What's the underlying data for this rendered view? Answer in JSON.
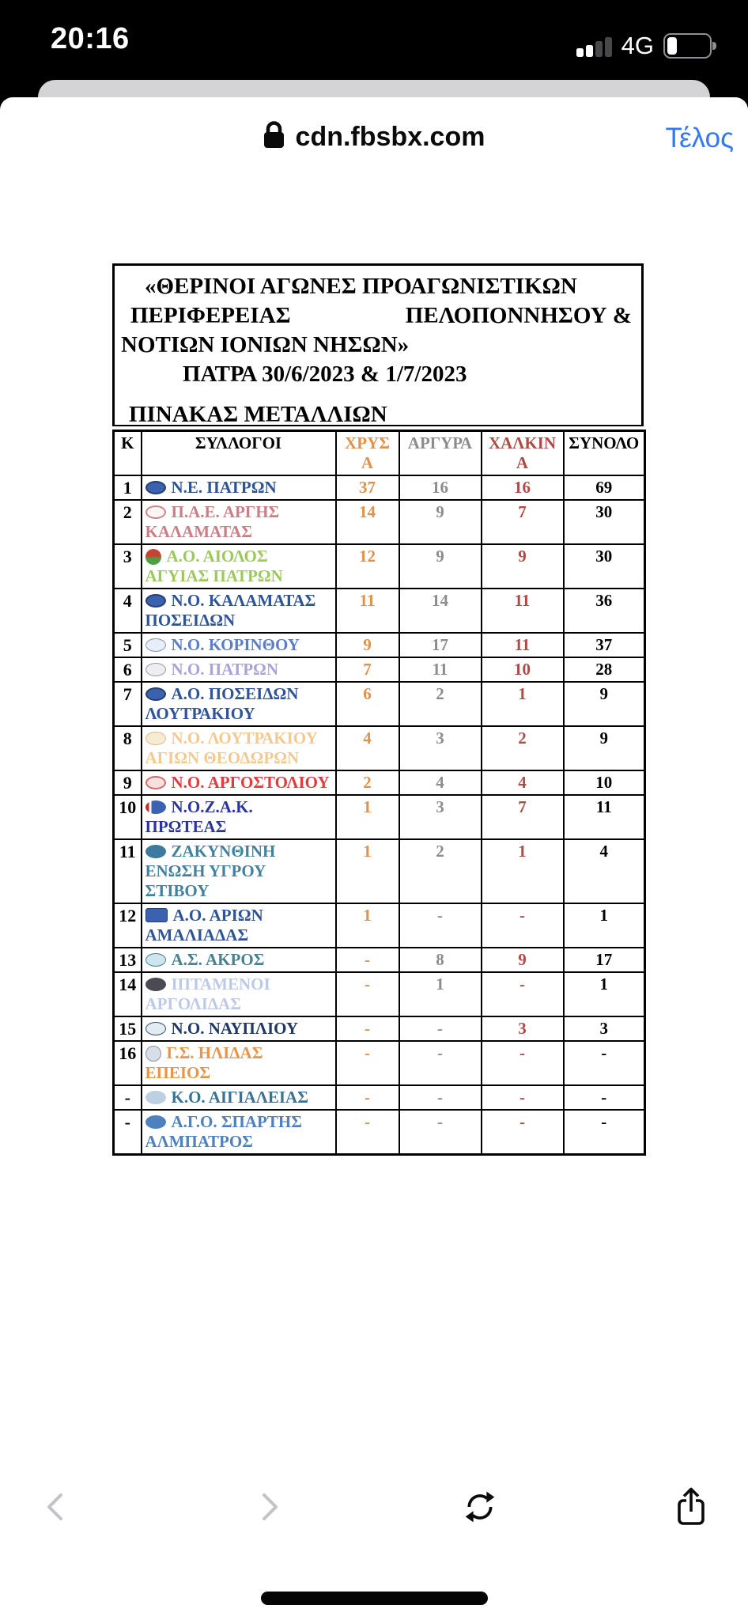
{
  "status_bar": {
    "time": "20:16",
    "network": "4G",
    "signal_bars_total": 4,
    "signal_bars_filled": 2,
    "battery_percent": 25
  },
  "browser": {
    "domain": "cdn.fbsbx.com",
    "done_label": "Τέλος"
  },
  "colors": {
    "gold": "#E0914B",
    "silver": "#8C8C8C",
    "bronze": "#AE4B44",
    "done_blue": "#3478F6"
  },
  "document": {
    "title_line1": "«ΘΕΡΙΝΟΙ ΑΓΩΝΕΣ ΠΡΟΑΓΩΝΙΣΤΙΚΩΝ",
    "title_line2_left": "ΠΕΡΙΦΕΡΕΙΑΣ",
    "title_line2_right": "ΠΕΛΟΠΟΝΝΗΣΟΥ &",
    "title_line3": "ΝΟΤΙΩΝ ΙΟΝΙΩΝ ΝΗΣΩΝ»",
    "title_line4": "ΠΑΤΡΑ 30/6/2023 & 1/7/2023",
    "table_title": "ΠΙΝΑΚΑΣ ΜΕΤΑΛΛΙΩΝ",
    "table": {
      "columns": [
        {
          "key": "k",
          "label": "Κ"
        },
        {
          "key": "clubs",
          "label": "ΣΥΛΛΟΓΟΙ"
        },
        {
          "key": "gold",
          "label": "ΧΡΥΣΑ"
        },
        {
          "key": "silver",
          "label": "ΑΡΓΥΡΑ"
        },
        {
          "key": "bronze",
          "label": "ΧΑΛΚΙΝΑ"
        },
        {
          "key": "total",
          "label": "ΣΥΝΟΛΟ"
        }
      ],
      "rows": [
        {
          "k": "1",
          "name": "Ν.Ε. ΠΑΤΡΩΝ",
          "name_color": "#2E5496",
          "gold": "37",
          "silver": "16",
          "bronze": "16",
          "total": "69",
          "logo": {
            "bg": "#3A62B0",
            "border": "2px solid #28406E",
            "shape": "oval"
          }
        },
        {
          "k": "2",
          "name": "Π.Α.Ε. ΑΡΓΗΣ ΚΑΛΑΜΑΤΑΣ",
          "name_color": "#CC7E86",
          "gold": "14",
          "silver": "9",
          "bronze": "7",
          "total": "30",
          "logo": {
            "bg": "#FDF4F4",
            "border": "2px solid #C9888E",
            "shape": "oval"
          }
        },
        {
          "k": "3",
          "name": "Α.Ο. ΑΙΟΛΟΣ ΑΓΥΙΑΣ ΠΑΤΡΩΝ",
          "name_color": "#9DC95C",
          "gold": "12",
          "silver": "9",
          "bronze": "9",
          "total": "30",
          "logo": {
            "bg": "linear-gradient(180deg,#C94335 45%,#4E9E44 60%)",
            "border": "none",
            "shape": "circle"
          }
        },
        {
          "k": "4",
          "name": "Ν.Ο. ΚΑΛΑΜΑΤΑΣ ΠΟΣΕΙΔΩΝ",
          "name_color": "#2E5496",
          "gold": "11",
          "silver": "14",
          "bronze": "11",
          "total": "36",
          "logo": {
            "bg": "#3A62B0",
            "border": "2px solid #28406E",
            "shape": "oval"
          }
        },
        {
          "k": "5",
          "name": "Ν.Ο. ΚΟΡΙΝΘΟΥ",
          "name_color": "#5D7EC4",
          "gold": "9",
          "silver": "17",
          "bronze": "11",
          "total": "37",
          "logo": {
            "bg": "#E8EEF8",
            "border": "1px solid #8899BB",
            "shape": "oval"
          }
        },
        {
          "k": "6",
          "name": "Ν.Ο. ΠΑΤΡΩΝ",
          "name_color": "#ABA3D8",
          "gold": "7",
          "silver": "11",
          "bronze": "10",
          "total": "28",
          "logo": {
            "bg": "#EDEDF2",
            "border": "1px solid #9999AA",
            "shape": "oval"
          }
        },
        {
          "k": "7",
          "name": "Α.Ο. ΠΟΣΕΙΔΩΝ ΛΟΥΤΡΑΚΙΟΥ",
          "name_color": "#2E5496",
          "gold": "6",
          "silver": "2",
          "bronze": "1",
          "total": "9",
          "logo": {
            "bg": "#3A62B0",
            "border": "2px solid #28406E",
            "shape": "oval"
          }
        },
        {
          "k": "8",
          "name": "Ν.Ο. ΛΟΥΤΡΑΚΙΟΥ ΑΓΙΩΝ ΘΕΟΔΩΡΩΝ",
          "name_color": "#F3C98F",
          "gold": "4",
          "silver": "3",
          "bronze": "2",
          "total": "9",
          "logo": {
            "bg": "#F7EBD2",
            "border": "1px solid #D9BE8C",
            "shape": "oval"
          }
        },
        {
          "k": "9",
          "name": "Ν.Ο. ΑΡΓΟΣΤΟΛΙΟΥ",
          "name_color": "#E23B3B",
          "gold": "2",
          "silver": "4",
          "bronze": "4",
          "total": "10",
          "logo": {
            "bg": "#F6E0E0",
            "border": "2px solid #D66A6A",
            "shape": "oval"
          }
        },
        {
          "k": "10",
          "name": "Ν.Ο.Ζ.Α.Κ. ΠΡΩΤΕΑΣ",
          "name_color": "#2B3699",
          "gold": "1",
          "silver": "3",
          "bronze": "7",
          "total": "11",
          "logo": {
            "bg": "linear-gradient(90deg,#C03030 0 18%,#FFFFFF 18% 28%,#3A62B0 28%)",
            "border": "none",
            "shape": "oval"
          }
        },
        {
          "k": "11",
          "name": "ΖΑΚΥΝΘΙΝΗ ΕΝΩΣΗ ΥΓΡΟΥ ΣΤΙΒΟΥ",
          "name_color": "#44819E",
          "gold": "1",
          "silver": "2",
          "bronze": "1",
          "total": "4",
          "logo": {
            "bg": "#3E7A9E",
            "border": "none",
            "shape": "oval"
          }
        },
        {
          "k": "12",
          "name": "Α.Ο. ΑΡΙΩΝ ΑΜΑΛΙΑΔΑΣ",
          "name_color": "#2E5496",
          "gold": "1",
          "silver": "-",
          "bronze": "-",
          "total": "1",
          "logo": {
            "bg": "#3A62B0",
            "border": "1px solid #28406E",
            "shape": "rect"
          }
        },
        {
          "k": "13",
          "name": "Α.Σ. ΑΚΡΟΣ",
          "name_color": "#47828E",
          "gold": "-",
          "silver": "8",
          "bronze": "9",
          "total": "17",
          "logo": {
            "bg": "#CFE4EE",
            "border": "1px solid #47828E",
            "shape": "oval"
          }
        },
        {
          "k": "14",
          "name": "ΙΠΤΑΜΕΝΟΙ ΑΡΓΟΛΙΔΑΣ",
          "name_color": "#BCC9E8",
          "gold": "-",
          "silver": "1",
          "bronze": "-",
          "total": "1",
          "logo": {
            "bg": "#4A4A52",
            "border": "none",
            "shape": "oval"
          }
        },
        {
          "k": "15",
          "name": "Ν.Ο. ΝΑΥΠΛΙΟΥ",
          "name_color": "#1F3864",
          "gold": "-",
          "silver": "-",
          "bronze": "3",
          "total": "3",
          "logo": {
            "bg": "#E4ECF2",
            "border": "1px solid #335577",
            "shape": "oval"
          }
        },
        {
          "k": "16",
          "name": "Γ.Σ. ΗΛΙΔΑΣ ΕΠΕΙΟΣ",
          "name_color": "#E8944A",
          "gold": "-",
          "silver": "-",
          "bronze": "-",
          "total": "-",
          "logo": {
            "bg": "#D8DEE8",
            "border": "1px solid #8A93A5",
            "shape": "circle"
          }
        },
        {
          "k": "-",
          "name": "Κ.Ο. ΑΙΓΙΑΛΕΙΑΣ",
          "name_color": "#3A7294",
          "gold": "-",
          "silver": "-",
          "bronze": "-",
          "total": "-",
          "logo": {
            "bg": "#BDD0E2",
            "border": "none",
            "shape": "oval"
          }
        },
        {
          "k": "-",
          "name": "Α.Γ.Ο. ΣΠΑΡΤΗΣ ΑΛΜΠΑΤΡΟΣ",
          "name_color": "#4E81BD",
          "gold": "-",
          "silver": "-",
          "bronze": "-",
          "total": "-",
          "logo": {
            "bg": "#4E81BD",
            "border": "none",
            "shape": "oval"
          }
        }
      ]
    }
  }
}
